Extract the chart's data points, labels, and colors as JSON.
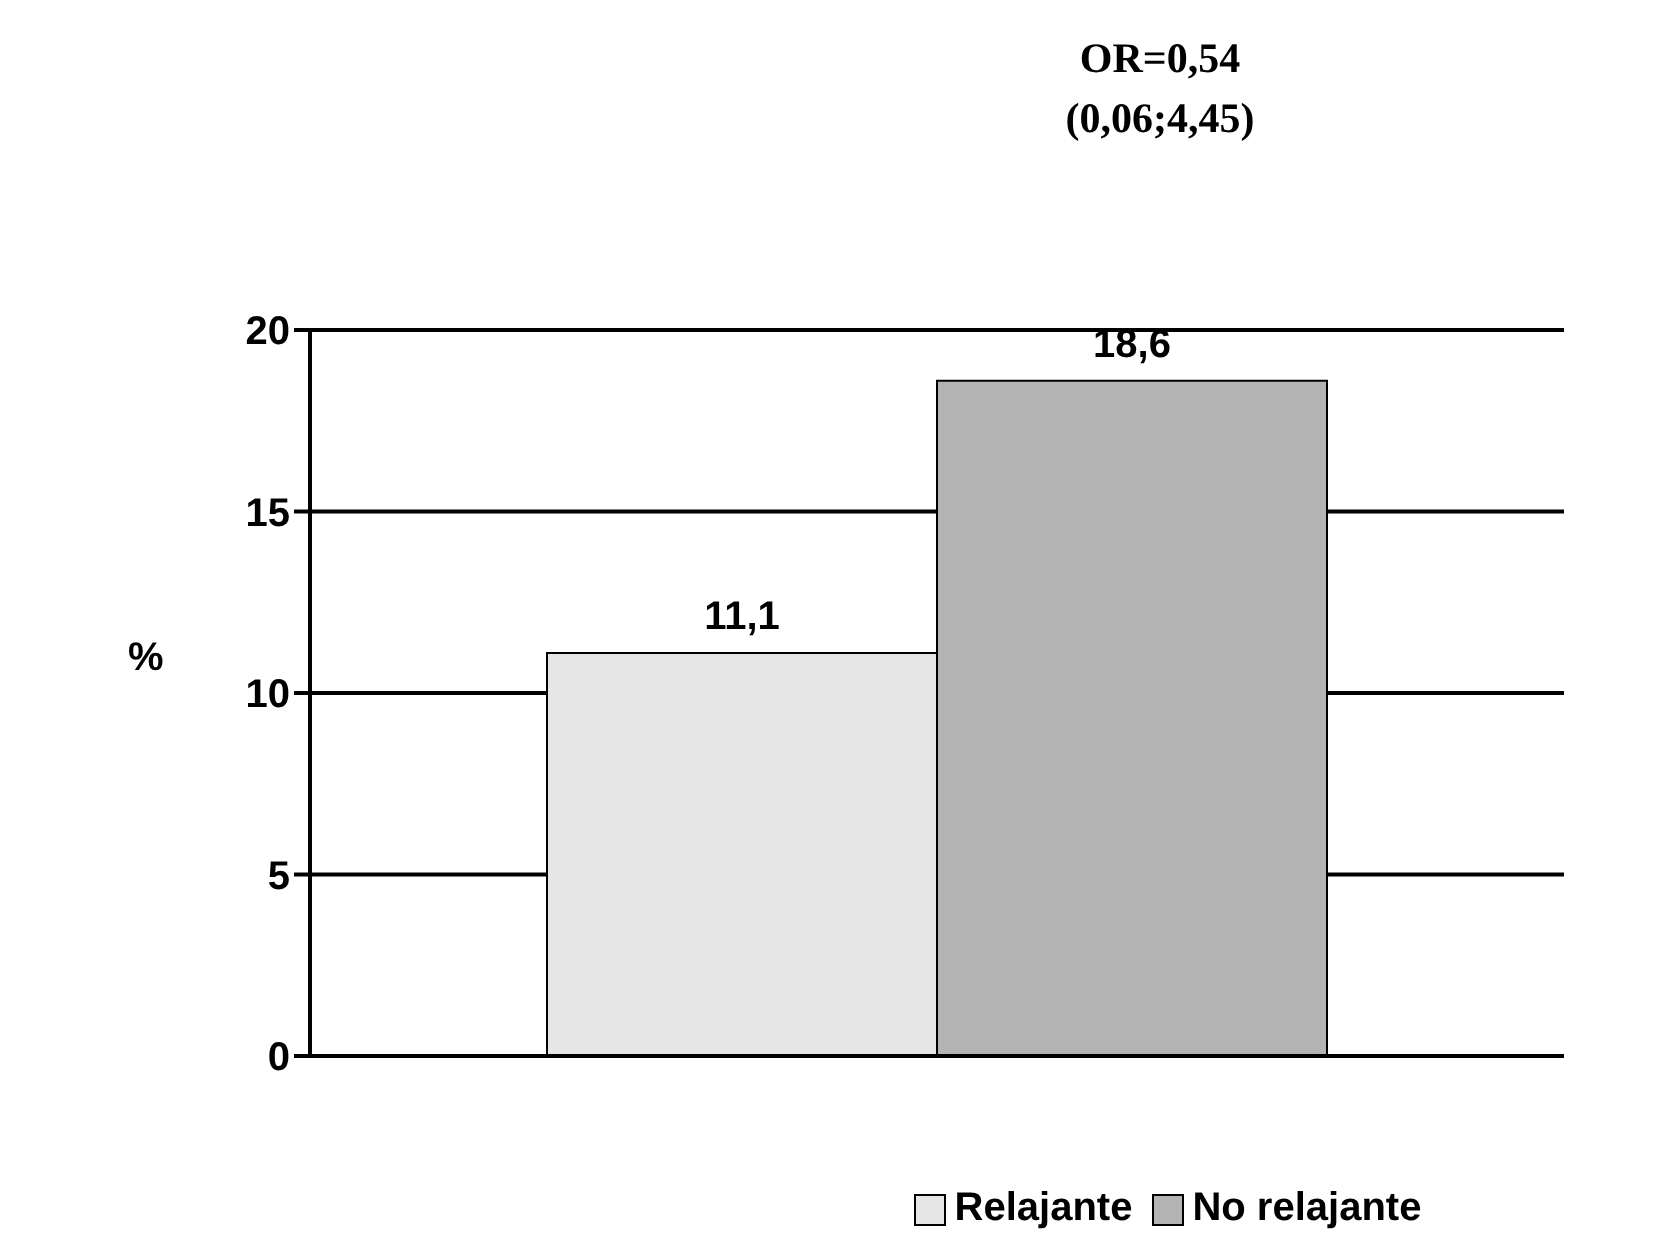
{
  "chart_data": {
    "type": "bar",
    "title": "OR=0,54",
    "subtitle": "(0,06;4,45)",
    "ylabel": "%",
    "categories": [
      null
    ],
    "series": [
      {
        "name": "Relajante",
        "color": "#e6e6e6",
        "values": [
          11.1
        ],
        "value_labels": [
          "11,1"
        ]
      },
      {
        "name": "No relajante",
        "color": "#b4b4b4",
        "values": [
          18.6
        ],
        "value_labels": [
          "18,6"
        ]
      }
    ],
    "ylim": [
      0,
      20
    ],
    "yticks": [
      0,
      5,
      10,
      15,
      20
    ],
    "grid": "y",
    "legend": "bottom"
  }
}
